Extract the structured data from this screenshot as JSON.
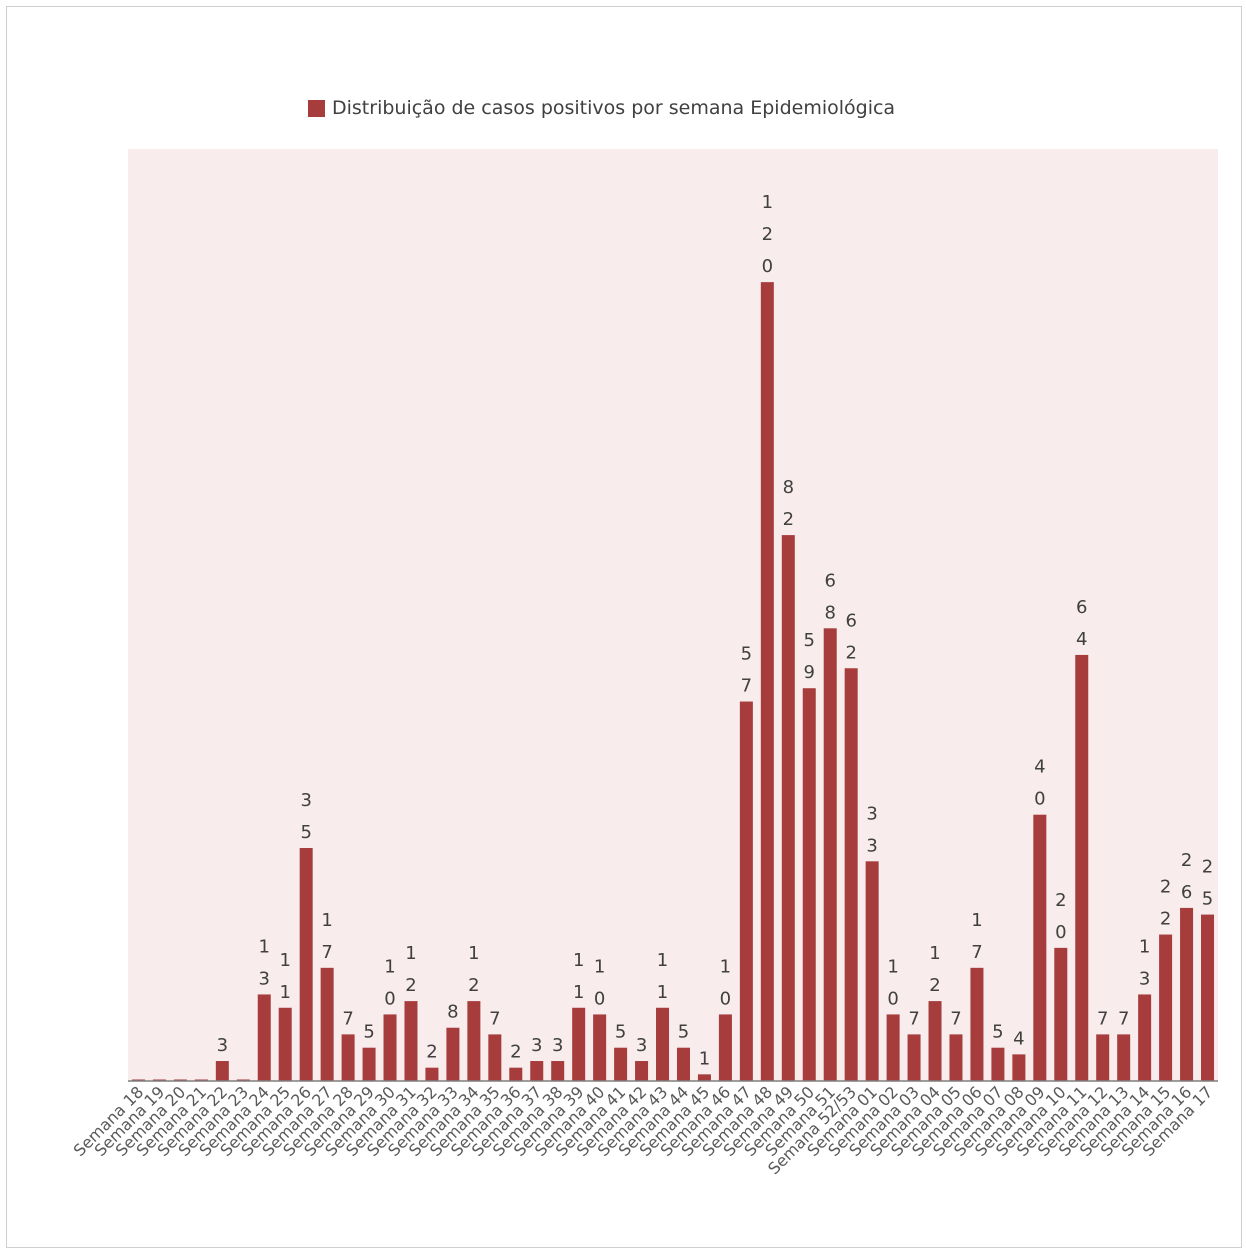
{
  "chart_data": {
    "type": "bar",
    "title": "",
    "xlabel": "",
    "ylabel": "",
    "ylim": [
      0,
      140
    ],
    "grid": false,
    "legend_position": "top",
    "plot_background": "#f8ecec",
    "bar_color": "#a63c3c",
    "categories": [
      "Semana 18",
      "Semana 19",
      "Semana 20",
      "Semana 21",
      "Semana 22",
      "Semana 23",
      "Semana 24",
      "Semana 25",
      "Semana 26",
      "Semana 27",
      "Semana 28",
      "Semana 29",
      "Semana 30",
      "Semana 31",
      "Semana 32",
      "Semana 33",
      "Semana 34",
      "Semana 35",
      "Semana 36",
      "Semana 37",
      "Semana 38",
      "Semana 39",
      "Semana 40",
      "Semana 41",
      "Semana 42",
      "Semana 43",
      "Semana 44",
      "Semana 45",
      "Semana 46",
      "Semana 47",
      "Semana 48",
      "Semana 49",
      "Semana 50",
      "Semana 51",
      "Semana 52/53",
      "Semana 01",
      "Semana 02",
      "Semana 03",
      "Semana 04",
      "Semana 05",
      "Semana 06",
      "Semana 07",
      "Semana 08",
      "Semana 09",
      "Semana 10",
      "Semana 11",
      "Semana 12",
      "Semana 13",
      "Semana 14",
      "Semana 15",
      "Semana 16",
      "Semana 17"
    ],
    "series": [
      {
        "name": "Distribuição de casos positivos por semana Epidemiológica",
        "values": [
          0,
          0,
          0,
          0,
          3,
          0,
          13,
          11,
          35,
          17,
          7,
          5,
          10,
          12,
          2,
          8,
          12,
          7,
          2,
          3,
          3,
          11,
          10,
          5,
          3,
          11,
          5,
          1,
          10,
          57,
          120,
          82,
          59,
          68,
          62,
          33,
          10,
          7,
          12,
          7,
          17,
          5,
          4,
          40,
          20,
          64,
          7,
          7,
          13,
          22,
          26,
          25
        ]
      }
    ]
  }
}
